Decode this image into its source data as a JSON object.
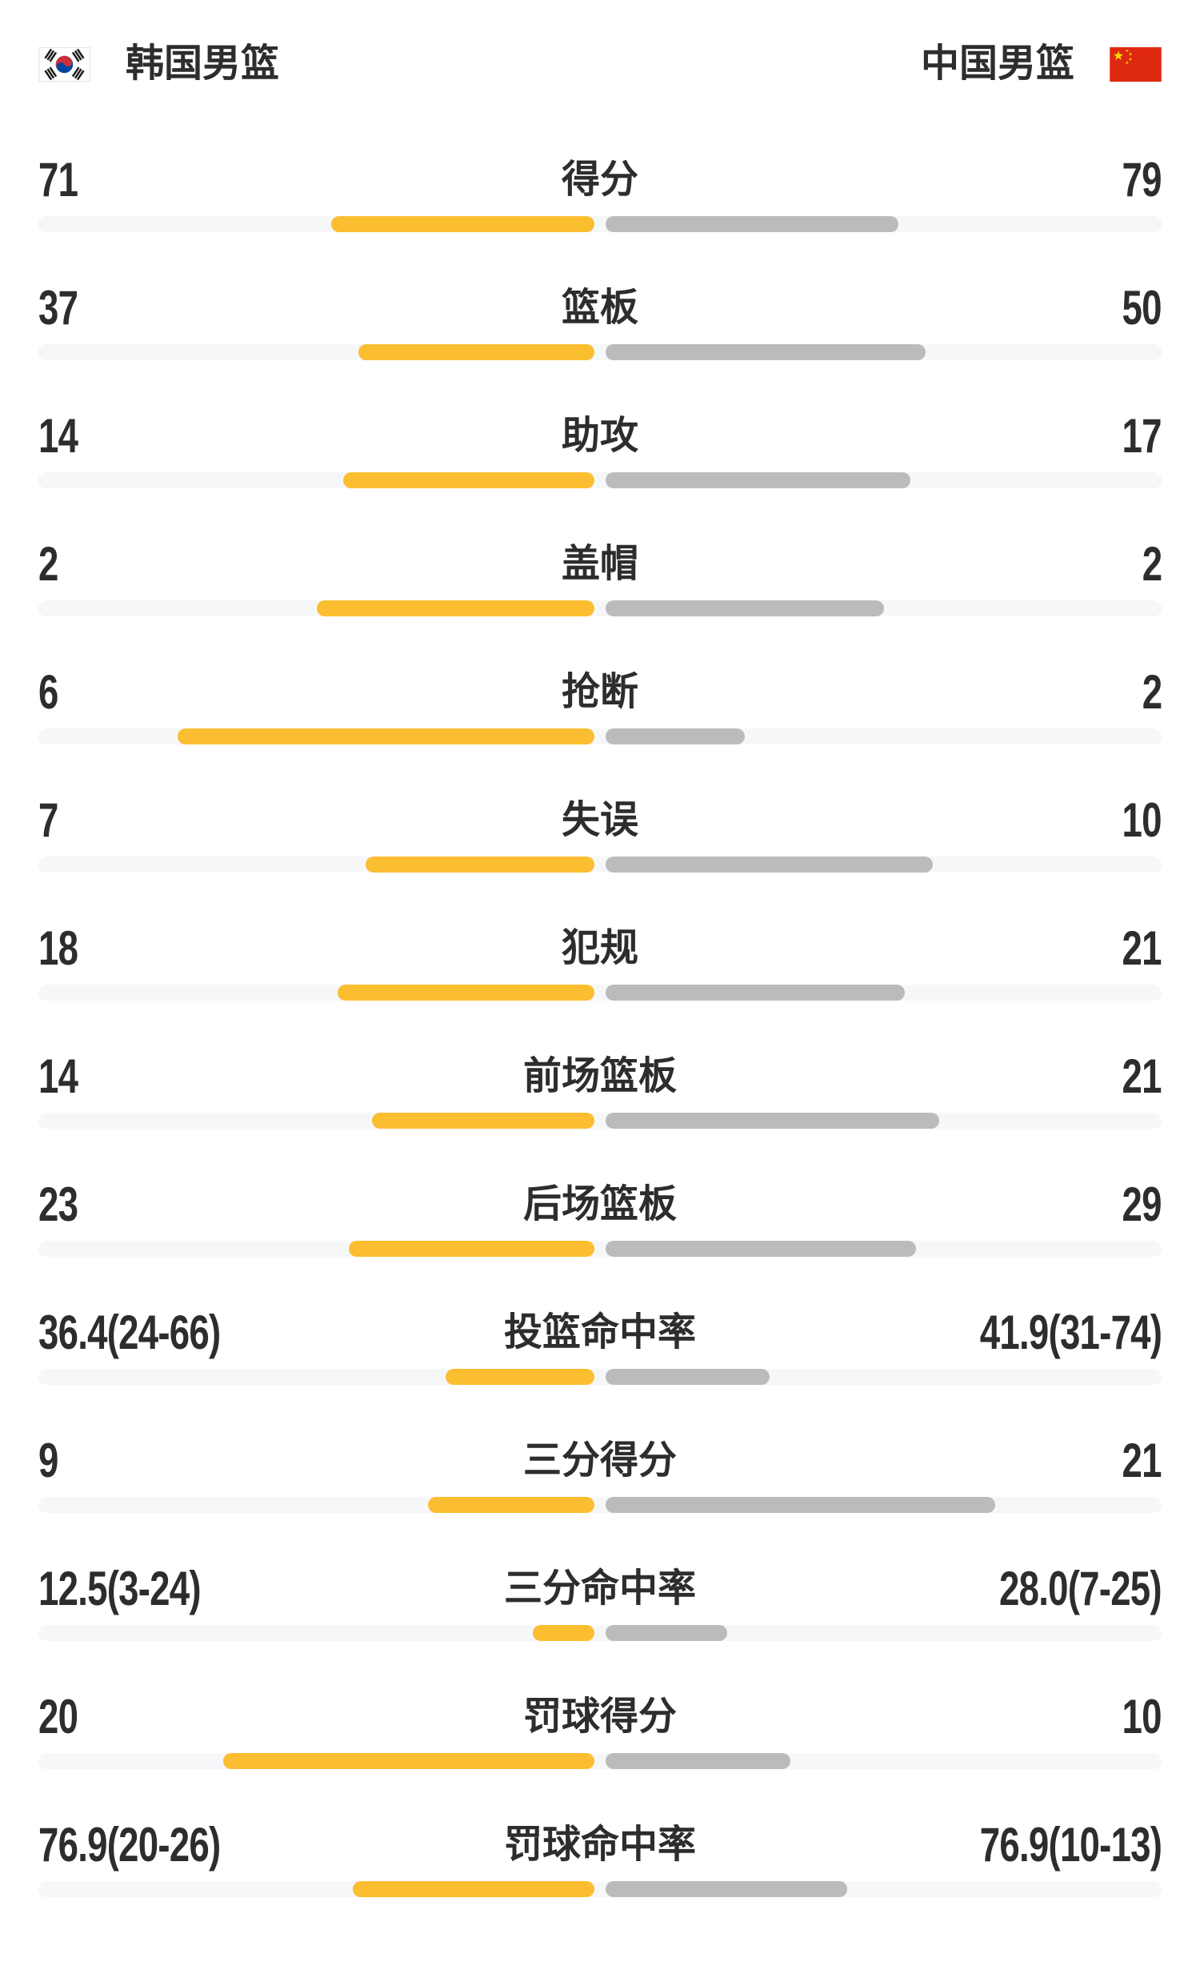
{
  "header": {
    "left_team": {
      "name": "韩国男篮",
      "flag": "south-korea-flag"
    },
    "right_team": {
      "name": "中国男篮",
      "flag": "china-flag"
    }
  },
  "colors": {
    "left_bar": "#FBBE30",
    "right_bar": "#BBBBBB",
    "track": "#F6F7F9",
    "text": "#2D2D2D",
    "china_flag_red": "#DE2910",
    "china_flag_star_yellow": "#FFDE00",
    "korea_taegeuk_red": "#CD2E3A",
    "korea_taegeuk_blue": "#0047A0"
  },
  "chart_data": {
    "type": "bar",
    "orientation": "horizontal-paired",
    "title": "韩国男篮 vs 中国男篮",
    "grid": false,
    "legend_position": "top",
    "categories": [
      "得分",
      "篮板",
      "助攻",
      "盖帽",
      "抢断",
      "失误",
      "犯规",
      "前场篮板",
      "后场篮板",
      "投篮命中率",
      "三分得分",
      "三分命中率",
      "罚球得分",
      "罚球命中率"
    ],
    "series": [
      {
        "name": "韩国男篮",
        "values": [
          71,
          37,
          14,
          2,
          6,
          7,
          18,
          14,
          23,
          36.4,
          9,
          12.5,
          20,
          76.9
        ],
        "display": [
          "71",
          "37",
          "14",
          "2",
          "6",
          "7",
          "18",
          "14",
          "23",
          "36.4(24-66)",
          "9",
          "12.5(3-24)",
          "20",
          "76.9(20-26)"
        ],
        "bar_fractions": [
          0.473,
          0.425,
          0.452,
          0.5,
          0.75,
          0.412,
          0.462,
          0.4,
          0.442,
          0.267,
          0.3,
          0.111,
          0.667,
          0.435
        ]
      },
      {
        "name": "中国男篮",
        "values": [
          79,
          50,
          17,
          2,
          2,
          10,
          21,
          21,
          29,
          41.9,
          21,
          28.0,
          10,
          76.9
        ],
        "display": [
          "79",
          "50",
          "17",
          "2",
          "2",
          "10",
          "21",
          "21",
          "29",
          "41.9(31-74)",
          "21",
          "28.0(7-25)",
          "10",
          "76.9(10-13)"
        ],
        "bar_fractions": [
          0.527,
          0.575,
          0.548,
          0.5,
          0.25,
          0.588,
          0.538,
          0.6,
          0.558,
          0.295,
          0.7,
          0.219,
          0.333,
          0.435
        ]
      }
    ]
  }
}
